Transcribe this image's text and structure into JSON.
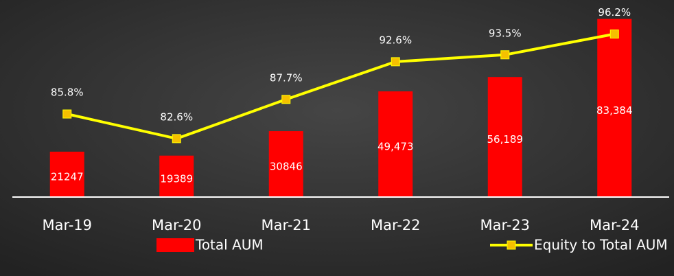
{
  "chart_data": {
    "type": "bar-line",
    "categories": [
      "Mar-19",
      "Mar-20",
      "Mar-21",
      "Mar-22",
      "Mar-23",
      "Mar-24"
    ],
    "series": [
      {
        "name": "Total AUM",
        "type": "bar",
        "color": "#ff0000",
        "values": [
          21247,
          19389,
          30846,
          49473,
          56189,
          83384
        ],
        "value_labels": [
          "21247",
          "19389",
          "30846",
          "49,473",
          "56,189",
          "83,384"
        ]
      },
      {
        "name": "Equity to Total AUM",
        "type": "line",
        "axis": "y2",
        "color": "#ffff00",
        "marker_color": "#f5c000",
        "values": [
          85.8,
          82.6,
          87.7,
          92.6,
          93.5,
          96.2
        ],
        "value_labels": [
          "85.8%",
          "82.6%",
          "87.7%",
          "92.6%",
          "93.5%",
          "96.2%"
        ]
      }
    ],
    "ylim": [
      0,
      90000
    ],
    "y2lim": [
      75,
      100
    ],
    "legend": "bottom"
  }
}
